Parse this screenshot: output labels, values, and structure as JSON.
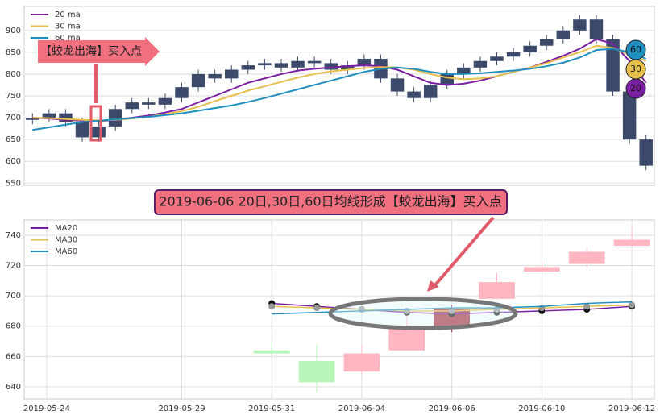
{
  "chart_data": [
    {
      "type": "candlestick",
      "ylim": [
        545,
        955
      ],
      "yticks": [
        550,
        600,
        650,
        700,
        750,
        800,
        850,
        900
      ],
      "grid": true,
      "candle_color": "#3b4a6b",
      "open": [
        695,
        700,
        710,
        690,
        655,
        680,
        720,
        735,
        730,
        745,
        770,
        800,
        790,
        810,
        820,
        825,
        815,
        830,
        825,
        810,
        820,
        835,
        790,
        760,
        745,
        775,
        800,
        815,
        830,
        840,
        850,
        865,
        880,
        900,
        925,
        880,
        760,
        650
      ],
      "close": [
        700,
        710,
        690,
        655,
        680,
        720,
        735,
        730,
        745,
        770,
        800,
        790,
        810,
        820,
        825,
        815,
        830,
        825,
        810,
        820,
        835,
        790,
        760,
        745,
        775,
        800,
        815,
        830,
        840,
        850,
        865,
        880,
        900,
        925,
        880,
        760,
        650,
        590
      ],
      "high": [
        710,
        720,
        720,
        700,
        690,
        730,
        745,
        745,
        755,
        780,
        810,
        810,
        820,
        830,
        835,
        835,
        840,
        840,
        835,
        830,
        845,
        845,
        800,
        770,
        785,
        810,
        825,
        840,
        850,
        860,
        875,
        890,
        910,
        935,
        935,
        890,
        770,
        660
      ],
      "low": [
        685,
        690,
        680,
        645,
        645,
        670,
        710,
        720,
        720,
        735,
        760,
        780,
        780,
        800,
        810,
        805,
        805,
        815,
        800,
        800,
        810,
        780,
        750,
        735,
        735,
        765,
        790,
        805,
        820,
        830,
        840,
        855,
        870,
        890,
        870,
        750,
        640,
        580
      ],
      "series": [
        {
          "name": "20 ma",
          "color": "#7b1fa2",
          "values": [
            700,
            698,
            695,
            693,
            692,
            695,
            700,
            705,
            712,
            720,
            735,
            750,
            765,
            780,
            790,
            800,
            808,
            812,
            815,
            818,
            820,
            818,
            810,
            795,
            780,
            775,
            778,
            785,
            795,
            805,
            815,
            828,
            842,
            858,
            880,
            870,
            830,
            780
          ]
        },
        {
          "name": "30 ma",
          "color": "#e6c04a",
          "values": [
            700,
            699,
            697,
            695,
            694,
            695,
            698,
            702,
            708,
            715,
            725,
            738,
            750,
            762,
            772,
            782,
            792,
            800,
            806,
            810,
            814,
            816,
            815,
            810,
            800,
            792,
            788,
            790,
            795,
            805,
            815,
            825,
            838,
            850,
            865,
            860,
            845,
            830
          ]
        },
        {
          "name": "60 ma",
          "color": "#1f8fbf",
          "values": [
            672,
            678,
            684,
            690,
            693,
            696,
            699,
            702,
            706,
            710,
            716,
            722,
            728,
            736,
            745,
            755,
            765,
            775,
            785,
            795,
            805,
            812,
            815,
            812,
            805,
            800,
            800,
            802,
            805,
            808,
            812,
            818,
            826,
            838,
            855,
            858,
            850,
            835
          ]
        }
      ],
      "annotation": "【蛟龙出海】买入点",
      "badges": [
        {
          "label": "60",
          "color": "#1f8fbf"
        },
        {
          "label": "30",
          "color": "#e6c04a"
        },
        {
          "label": "20",
          "color": "#7b1fa2"
        }
      ]
    },
    {
      "type": "candlestick",
      "ylim": [
        632,
        750
      ],
      "yticks": [
        640,
        660,
        680,
        700,
        720,
        740
      ],
      "grid": true,
      "categories": [
        "2019-05-24",
        null,
        null,
        "2019-05-29",
        null,
        "2019-05-31",
        null,
        "2019-06-04",
        null,
        "2019-06-06",
        null,
        "2019-06-10",
        null,
        "2019-06-12"
      ],
      "open": [
        null,
        null,
        null,
        null,
        null,
        664,
        657,
        650,
        664,
        691,
        698,
        716,
        721,
        733
      ],
      "close": [
        null,
        null,
        null,
        null,
        null,
        662,
        643,
        662,
        680,
        679,
        709,
        719,
        729,
        737
      ],
      "high": [
        null,
        null,
        null,
        null,
        null,
        670,
        668,
        667,
        690,
        694,
        715,
        722,
        732,
        745
      ],
      "low": [
        null,
        null,
        null,
        null,
        null,
        660,
        636,
        648,
        664,
        676,
        698,
        715,
        718,
        733
      ],
      "colors": [
        null,
        null,
        null,
        null,
        null,
        "#b8f5b8",
        "#b8f5b8",
        "#ffb6c1",
        "#ffb6c1",
        "#a52a3a",
        "#ffb6c1",
        "#ffb6c1",
        "#ffb6c1",
        "#ffb6c1"
      ],
      "series": [
        {
          "name": "MA20",
          "color": "#7b1fa2",
          "values": [
            null,
            null,
            null,
            null,
            null,
            695,
            693,
            691,
            689,
            688,
            689,
            690,
            691,
            693
          ]
        },
        {
          "name": "MA30",
          "color": "#e6c04a",
          "values": [
            null,
            null,
            null,
            null,
            null,
            693,
            692,
            691,
            690,
            690,
            691,
            692,
            693,
            694
          ]
        },
        {
          "name": "MA60",
          "color": "#1f8fbf",
          "values": [
            null,
            null,
            null,
            null,
            null,
            688,
            689,
            690,
            691,
            692,
            692,
            693,
            695,
            696
          ]
        }
      ],
      "annotation": "2019-06-06 20日,30日,60日均线形成【蛟龙出海】买入点"
    }
  ]
}
